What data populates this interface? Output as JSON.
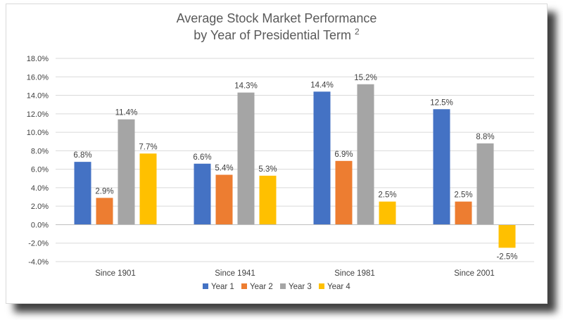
{
  "chart_data": {
    "type": "bar",
    "title_line1": "Average Stock Market Performance",
    "title_line2": "by Year of Presidential Term",
    "title_superscript": "2",
    "categories": [
      "Since 1901",
      "Since 1941",
      "Since 1981",
      "Since 2001"
    ],
    "series": [
      {
        "name": "Year 1",
        "color": "#4472c4",
        "values": [
          6.8,
          6.6,
          14.4,
          12.5
        ],
        "labels": [
          "6.8%",
          "6.6%",
          "14.4%",
          "12.5%"
        ]
      },
      {
        "name": "Year 2",
        "color": "#ed7d31",
        "values": [
          2.9,
          5.4,
          6.9,
          2.5
        ],
        "labels": [
          "2.9%",
          "5.4%",
          "6.9%",
          "2.5%"
        ]
      },
      {
        "name": "Year 3",
        "color": "#a5a5a5",
        "values": [
          11.4,
          14.3,
          15.2,
          8.8
        ],
        "labels": [
          "11.4%",
          "14.3%",
          "15.2%",
          "8.8%"
        ]
      },
      {
        "name": "Year 4",
        "color": "#ffc000",
        "values": [
          7.7,
          5.3,
          2.5,
          -2.5
        ],
        "labels": [
          "7.7%",
          "5.3%",
          "2.5%",
          "-2.5%"
        ]
      }
    ],
    "ylim": [
      -4,
      18
    ],
    "yticks": [
      18,
      16,
      14,
      12,
      10,
      8,
      6,
      4,
      2,
      0,
      -2,
      -4
    ],
    "ytick_labels": [
      "18.0%",
      "16.0%",
      "14.0%",
      "12.0%",
      "10.0%",
      "8.0%",
      "6.0%",
      "4.0%",
      "2.0%",
      "0.0%",
      "-2.0%",
      "-4.0%"
    ],
    "grid": true,
    "gridline_color": "#d9d9d9",
    "legend_position": "bottom",
    "xlabel": "",
    "ylabel": ""
  }
}
